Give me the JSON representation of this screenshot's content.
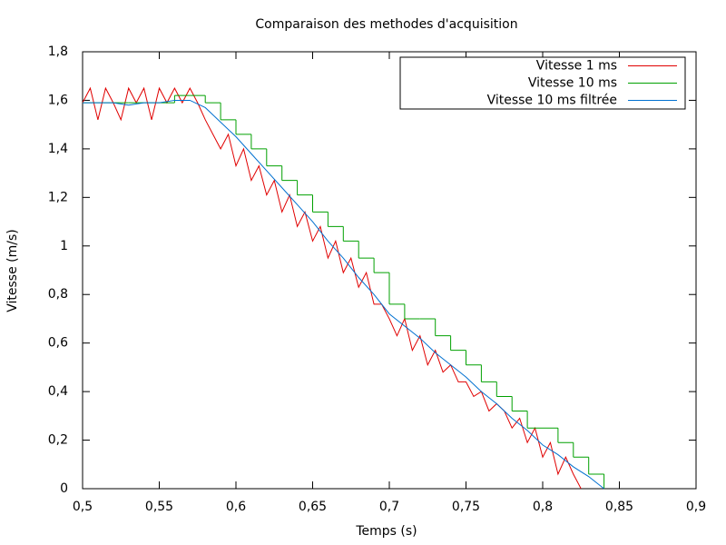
{
  "chart_data": {
    "type": "line",
    "title": "Comparaison des methodes d'acquisition",
    "xlabel": "Temps (s)",
    "ylabel": "Vitesse (m/s)",
    "xlim": [
      0.5,
      0.9
    ],
    "ylim": [
      0,
      1.8
    ],
    "xticks": [
      {
        "value": 0.5,
        "label": "0,5"
      },
      {
        "value": 0.55,
        "label": "0,55"
      },
      {
        "value": 0.6,
        "label": "0,6"
      },
      {
        "value": 0.65,
        "label": "0,65"
      },
      {
        "value": 0.7,
        "label": "0,7"
      },
      {
        "value": 0.75,
        "label": "0,75"
      },
      {
        "value": 0.8,
        "label": "0,8"
      },
      {
        "value": 0.85,
        "label": "0,85"
      },
      {
        "value": 0.9,
        "label": "0,9"
      }
    ],
    "yticks": [
      0,
      {
        "value": 0.2,
        "label": "0,2"
      },
      {
        "value": 0.4,
        "label": "0,4"
      },
      {
        "value": 0.6,
        "label": "0,6"
      },
      {
        "value": 0.8,
        "label": "0,8"
      },
      1,
      {
        "value": 1.2,
        "label": "1,2"
      },
      {
        "value": 1.4,
        "label": "1,4"
      },
      {
        "value": 1.6,
        "label": "1,6"
      },
      {
        "value": 1.8,
        "label": "1,8"
      }
    ],
    "grid": false,
    "legend": "top-right",
    "series": [
      {
        "name": "Vitesse 1 ms",
        "color": "#e00000",
        "step": false,
        "x": [
          0.5,
          0.505,
          0.51,
          0.515,
          0.52,
          0.525,
          0.53,
          0.535,
          0.54,
          0.545,
          0.55,
          0.555,
          0.56,
          0.565,
          0.57,
          0.575,
          0.58,
          0.585,
          0.59,
          0.595,
          0.6,
          0.605,
          0.61,
          0.615,
          0.62,
          0.625,
          0.63,
          0.635,
          0.64,
          0.645,
          0.65,
          0.655,
          0.66,
          0.665,
          0.67,
          0.675,
          0.68,
          0.685,
          0.69,
          0.695,
          0.7,
          0.705,
          0.71,
          0.715,
          0.72,
          0.725,
          0.73,
          0.735,
          0.74,
          0.745,
          0.75,
          0.755,
          0.76,
          0.765,
          0.77,
          0.775,
          0.78,
          0.785,
          0.79,
          0.795,
          0.8,
          0.805,
          0.81,
          0.815,
          0.82,
          0.825
        ],
        "values": [
          1.59,
          1.65,
          1.52,
          1.65,
          1.59,
          1.52,
          1.65,
          1.59,
          1.65,
          1.52,
          1.65,
          1.59,
          1.65,
          1.59,
          1.65,
          1.59,
          1.52,
          1.46,
          1.4,
          1.46,
          1.33,
          1.4,
          1.27,
          1.33,
          1.21,
          1.27,
          1.14,
          1.21,
          1.08,
          1.14,
          1.02,
          1.08,
          0.95,
          1.02,
          0.89,
          0.95,
          0.83,
          0.89,
          0.76,
          0.76,
          0.7,
          0.63,
          0.7,
          0.57,
          0.63,
          0.51,
          0.57,
          0.48,
          0.51,
          0.44,
          0.44,
          0.38,
          0.4,
          0.32,
          0.35,
          0.32,
          0.25,
          0.29,
          0.19,
          0.25,
          0.13,
          0.19,
          0.06,
          0.13,
          0.06,
          0
        ]
      },
      {
        "name": "Vitesse 10 ms",
        "color": "#00a000",
        "step": true,
        "x": [
          0.5,
          0.51,
          0.52,
          0.53,
          0.54,
          0.55,
          0.56,
          0.57,
          0.58,
          0.59,
          0.6,
          0.61,
          0.62,
          0.63,
          0.64,
          0.65,
          0.66,
          0.67,
          0.68,
          0.69,
          0.7,
          0.71,
          0.72,
          0.73,
          0.74,
          0.75,
          0.76,
          0.77,
          0.78,
          0.79,
          0.8,
          0.81,
          0.82,
          0.83,
          0.84
        ],
        "values": [
          1.59,
          1.59,
          1.59,
          1.59,
          1.59,
          1.59,
          1.62,
          1.62,
          1.59,
          1.52,
          1.46,
          1.4,
          1.33,
          1.27,
          1.21,
          1.14,
          1.08,
          1.02,
          0.95,
          0.89,
          0.76,
          0.7,
          0.7,
          0.63,
          0.57,
          0.51,
          0.44,
          0.38,
          0.32,
          0.25,
          0.25,
          0.19,
          0.13,
          0.06,
          0
        ]
      },
      {
        "name": "Vitesse 10 ms filtrée",
        "color": "#0070d0",
        "step": false,
        "x": [
          0.5,
          0.51,
          0.52,
          0.53,
          0.54,
          0.55,
          0.56,
          0.57,
          0.58,
          0.59,
          0.6,
          0.61,
          0.62,
          0.63,
          0.64,
          0.65,
          0.66,
          0.67,
          0.68,
          0.69,
          0.7,
          0.71,
          0.72,
          0.73,
          0.74,
          0.75,
          0.76,
          0.77,
          0.78,
          0.79,
          0.8,
          0.81,
          0.82,
          0.83,
          0.84
        ],
        "values": [
          1.59,
          1.59,
          1.59,
          1.58,
          1.59,
          1.59,
          1.6,
          1.6,
          1.57,
          1.51,
          1.45,
          1.38,
          1.31,
          1.24,
          1.17,
          1.1,
          1.02,
          0.95,
          0.87,
          0.8,
          0.72,
          0.67,
          0.62,
          0.56,
          0.51,
          0.46,
          0.4,
          0.35,
          0.29,
          0.24,
          0.18,
          0.14,
          0.09,
          0.05,
          0
        ]
      }
    ]
  }
}
